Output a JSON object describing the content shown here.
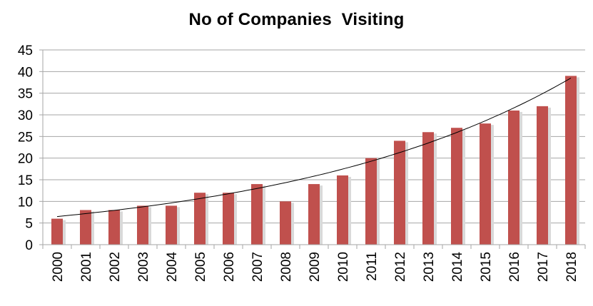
{
  "chart_data": {
    "type": "bar",
    "title": "No of Companies  Visiting",
    "xlabel": "",
    "ylabel": "",
    "categories": [
      "2000",
      "2001",
      "2002",
      "2003",
      "2004",
      "2005",
      "2006",
      "2007",
      "2008",
      "2009",
      "2010",
      "2011",
      "2012",
      "2013",
      "2014",
      "2015",
      "2016",
      "2017",
      "2018"
    ],
    "values": [
      6,
      8,
      8,
      9,
      9,
      12,
      12,
      14,
      10,
      14,
      16,
      20,
      24,
      26,
      27,
      28,
      31,
      32,
      39
    ],
    "ylim": [
      0,
      45
    ],
    "yticks": [
      "0",
      "5",
      "10",
      "15",
      "20",
      "25",
      "30",
      "35",
      "40",
      "45"
    ],
    "trendline": {
      "type": "exponential",
      "start": 6.5,
      "end": 38.5
    },
    "grid": true,
    "legend": "none",
    "bar_color": "#C0504D",
    "shadow_color": "#D9D9D9",
    "trendline_color": "#000000",
    "grid_color": "#A6A6A6"
  }
}
